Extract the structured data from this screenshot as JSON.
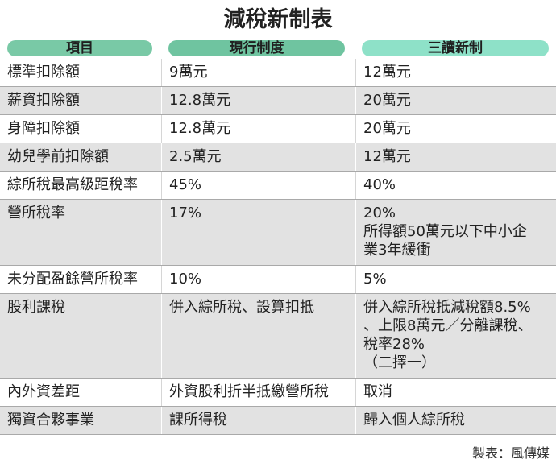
{
  "title": "減稅新制表",
  "headers": [
    "項目",
    "現行制度",
    "三讀新制"
  ],
  "header_colors": [
    "#79c9a6",
    "#6fc4a0",
    "#8ee1c8"
  ],
  "rows": [
    {
      "item": "標準扣除額",
      "current": [
        "9萬元"
      ],
      "new": [
        "12萬元"
      ]
    },
    {
      "item": "薪資扣除額",
      "current": [
        "12.8萬元"
      ],
      "new": [
        "20萬元"
      ]
    },
    {
      "item": "身障扣除額",
      "current": [
        "12.8萬元"
      ],
      "new": [
        "20萬元"
      ]
    },
    {
      "item": "幼兒學前扣除額",
      "current": [
        "2.5萬元"
      ],
      "new": [
        "12萬元"
      ]
    },
    {
      "item": "綜所稅最高級距稅率",
      "current": [
        "45%"
      ],
      "new": [
        "40%"
      ]
    },
    {
      "item": "營所稅率",
      "current": [
        "17%"
      ],
      "new": [
        "20%",
        "所得額50萬元以下中小企",
        "業3年緩衝"
      ]
    },
    {
      "item": "未分配盈餘營所稅率",
      "current": [
        "10%"
      ],
      "new": [
        "5%"
      ]
    },
    {
      "item": "股利課稅",
      "current": [
        "併入綜所稅、設算扣抵"
      ],
      "new": [
        "併入綜所稅抵減稅額8.5%",
        "、上限8萬元／分離課稅、",
        "稅率28%",
        "（二擇一）"
      ]
    },
    {
      "item": "內外資差距",
      "current": [
        "外資股利折半抵繳營所稅"
      ],
      "new": [
        "取消"
      ]
    },
    {
      "item": "獨資合夥事業",
      "current": [
        "課所得稅"
      ],
      "new": [
        "歸入個人綜所稅"
      ]
    }
  ],
  "source": "製表：風傳媒"
}
